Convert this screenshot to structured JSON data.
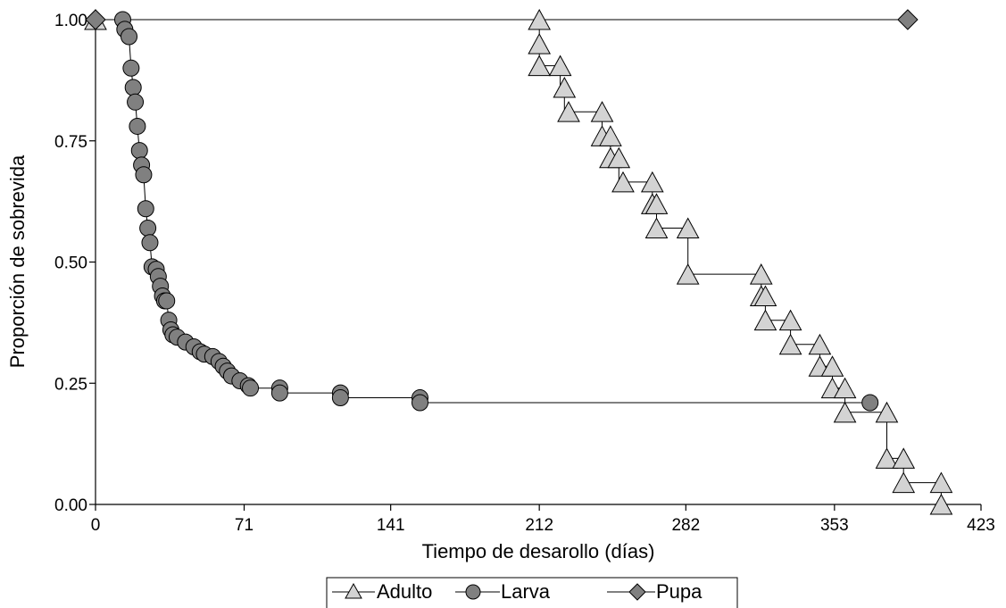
{
  "chart_data": {
    "type": "line",
    "subtype": "kaplan-meier-step",
    "title": "",
    "xlabel": "Tiempo de desarollo (días)",
    "ylabel": "Proporción de sobrevida",
    "xlim": [
      0,
      423
    ],
    "ylim": [
      0,
      1
    ],
    "x_ticks": [
      0,
      71,
      141,
      212,
      282,
      353,
      423
    ],
    "y_ticks": [
      0,
      0.25,
      0.5,
      0.75,
      1
    ],
    "x_tick_labels": [
      "0",
      "71",
      "141",
      "212",
      "282",
      "353",
      "423"
    ],
    "y_tick_labels": [
      "0.00",
      "0.25",
      "0.50",
      "0.75",
      "1.00"
    ],
    "grid": false,
    "legend_position": "bottom-center",
    "series": [
      {
        "name": "Adulto",
        "marker": "triangle",
        "color": "#d3d3d3",
        "points": [
          [
            0,
            1.0
          ],
          [
            212,
            1.0
          ],
          [
            212,
            0.95
          ],
          [
            212,
            0.905
          ],
          [
            222,
            0.905
          ],
          [
            222,
            0.86
          ],
          [
            224,
            0.86
          ],
          [
            224,
            0.81
          ],
          [
            242,
            0.81
          ],
          [
            242,
            0.76
          ],
          [
            246,
            0.76
          ],
          [
            246,
            0.715
          ],
          [
            250,
            0.715
          ],
          [
            250,
            0.665
          ],
          [
            266,
            0.665
          ],
          [
            266,
            0.62
          ],
          [
            268,
            0.62
          ],
          [
            268,
            0.57
          ],
          [
            283,
            0.57
          ],
          [
            283,
            0.475
          ],
          [
            318,
            0.475
          ],
          [
            318,
            0.43
          ],
          [
            320,
            0.43
          ],
          [
            320,
            0.38
          ],
          [
            332,
            0.38
          ],
          [
            332,
            0.33
          ],
          [
            346,
            0.33
          ],
          [
            346,
            0.285
          ],
          [
            352,
            0.285
          ],
          [
            352,
            0.24
          ],
          [
            358,
            0.24
          ],
          [
            358,
            0.19
          ],
          [
            378,
            0.19
          ],
          [
            378,
            0.095
          ],
          [
            386,
            0.095
          ],
          [
            386,
            0.045
          ],
          [
            404,
            0.045
          ],
          [
            404,
            0.0
          ]
        ]
      },
      {
        "name": "Larva",
        "marker": "circle",
        "color": "#808080",
        "points": [
          [
            0,
            1.0
          ],
          [
            13,
            1.0
          ],
          [
            14,
            0.98
          ],
          [
            16,
            0.965
          ],
          [
            17,
            0.9
          ],
          [
            18,
            0.86
          ],
          [
            19,
            0.83
          ],
          [
            20,
            0.78
          ],
          [
            21,
            0.73
          ],
          [
            22,
            0.7
          ],
          [
            23,
            0.68
          ],
          [
            24,
            0.61
          ],
          [
            25,
            0.57
          ],
          [
            26,
            0.54
          ],
          [
            27,
            0.49
          ],
          [
            29,
            0.485
          ],
          [
            30,
            0.47
          ],
          [
            31,
            0.45
          ],
          [
            32,
            0.43
          ],
          [
            33,
            0.42
          ],
          [
            34,
            0.42
          ],
          [
            35,
            0.38
          ],
          [
            36,
            0.36
          ],
          [
            37,
            0.35
          ],
          [
            39,
            0.345
          ],
          [
            43,
            0.335
          ],
          [
            47,
            0.325
          ],
          [
            50,
            0.315
          ],
          [
            52,
            0.31
          ],
          [
            56,
            0.305
          ],
          [
            59,
            0.295
          ],
          [
            61,
            0.285
          ],
          [
            63,
            0.275
          ],
          [
            65,
            0.265
          ],
          [
            69,
            0.255
          ],
          [
            73,
            0.245
          ],
          [
            74,
            0.24
          ],
          [
            88,
            0.24
          ],
          [
            88,
            0.23
          ],
          [
            117,
            0.23
          ],
          [
            117,
            0.22
          ],
          [
            155,
            0.22
          ],
          [
            155,
            0.21
          ],
          [
            370,
            0.21
          ]
        ]
      },
      {
        "name": "Pupa",
        "marker": "diamond",
        "color": "#808080",
        "points": [
          [
            0,
            1.0
          ],
          [
            388,
            1.0
          ]
        ]
      }
    ],
    "markers": {
      "Adulto": [
        [
          0,
          1.0
        ],
        [
          212,
          1.0
        ],
        [
          212,
          0.95
        ],
        [
          212,
          0.905
        ],
        [
          222,
          0.905
        ],
        [
          224,
          0.86
        ],
        [
          226,
          0.81
        ],
        [
          242,
          0.81
        ],
        [
          242,
          0.76
        ],
        [
          246,
          0.76
        ],
        [
          246,
          0.715
        ],
        [
          250,
          0.715
        ],
        [
          252,
          0.665
        ],
        [
          266,
          0.665
        ],
        [
          266,
          0.62
        ],
        [
          268,
          0.62
        ],
        [
          268,
          0.57
        ],
        [
          283,
          0.57
        ],
        [
          283,
          0.475
        ],
        [
          318,
          0.475
        ],
        [
          318,
          0.43
        ],
        [
          320,
          0.43
        ],
        [
          320,
          0.38
        ],
        [
          332,
          0.38
        ],
        [
          332,
          0.33
        ],
        [
          346,
          0.33
        ],
        [
          346,
          0.285
        ],
        [
          352,
          0.285
        ],
        [
          352,
          0.24
        ],
        [
          358,
          0.24
        ],
        [
          358,
          0.19
        ],
        [
          378,
          0.19
        ],
        [
          378,
          0.095
        ],
        [
          386,
          0.095
        ],
        [
          386,
          0.045
        ],
        [
          404,
          0.045
        ],
        [
          404,
          0.0
        ]
      ],
      "Larva": [
        [
          13,
          1.0
        ],
        [
          14,
          0.98
        ],
        [
          16,
          0.965
        ],
        [
          17,
          0.9
        ],
        [
          18,
          0.86
        ],
        [
          19,
          0.83
        ],
        [
          20,
          0.78
        ],
        [
          21,
          0.73
        ],
        [
          22,
          0.7
        ],
        [
          23,
          0.68
        ],
        [
          24,
          0.61
        ],
        [
          25,
          0.57
        ],
        [
          26,
          0.54
        ],
        [
          27,
          0.49
        ],
        [
          29,
          0.485
        ],
        [
          30,
          0.47
        ],
        [
          31,
          0.45
        ],
        [
          32,
          0.43
        ],
        [
          33,
          0.42
        ],
        [
          34,
          0.42
        ],
        [
          35,
          0.38
        ],
        [
          36,
          0.36
        ],
        [
          37,
          0.35
        ],
        [
          39,
          0.345
        ],
        [
          43,
          0.335
        ],
        [
          47,
          0.325
        ],
        [
          50,
          0.315
        ],
        [
          52,
          0.31
        ],
        [
          56,
          0.305
        ],
        [
          59,
          0.295
        ],
        [
          61,
          0.285
        ],
        [
          63,
          0.275
        ],
        [
          65,
          0.265
        ],
        [
          69,
          0.255
        ],
        [
          73,
          0.245
        ],
        [
          74,
          0.24
        ],
        [
          88,
          0.24
        ],
        [
          88,
          0.23
        ],
        [
          117,
          0.23
        ],
        [
          117,
          0.22
        ],
        [
          155,
          0.22
        ],
        [
          155,
          0.21
        ],
        [
          370,
          0.21
        ]
      ],
      "Pupa": [
        [
          0,
          1.0
        ],
        [
          388,
          1.0
        ]
      ]
    }
  }
}
